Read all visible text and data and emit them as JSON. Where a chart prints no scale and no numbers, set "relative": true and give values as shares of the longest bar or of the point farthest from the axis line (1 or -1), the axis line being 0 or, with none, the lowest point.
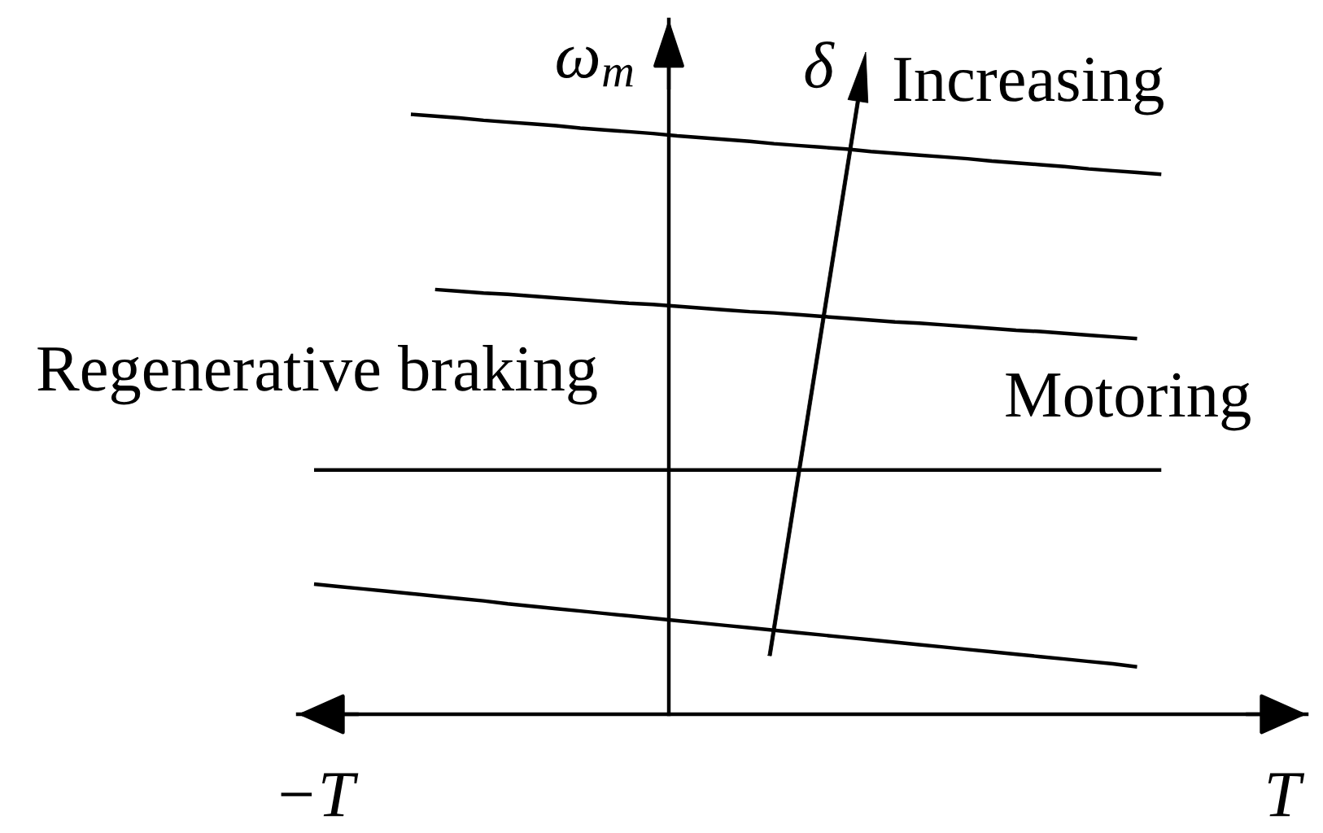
{
  "chart_data": {
    "type": "line",
    "relative": true,
    "ylabel": "ω$_{m}$",
    "categories": [
      null,
      null,
      null,
      null,
      null,
      null,
      null,
      null,
      null,
      null,
      null,
      null,
      null,
      null,
      null,
      null,
      null,
      null,
      null,
      null,
      null,
      null,
      null,
      null,
      null,
      null,
      null,
      null,
      null,
      null,
      null,
      null,
      null,
      null,
      null,
      null,
      null,
      null,
      null,
      null,
      null
    ],
    "annotations": [
      "δ",
      "Increasing",
      "Regenerative braking",
      "Motoring",
      "−T",
      "T"
    ],
    "series": [
      {
        "color": "#000000",
        "values": [
          null,
          null,
          null,
          null,
          1,
          0.997,
          0.994,
          0.99,
          0.987,
          0.984,
          0.981,
          0.977,
          0.974,
          0.971,
          0.968,
          0.964,
          0.961,
          0.958,
          0.955,
          0.951,
          0.948,
          0.945,
          0.942,
          0.938,
          0.935,
          0.932,
          0.929,
          0.926,
          0.922,
          0.919,
          0.916,
          0.913,
          0.909,
          0.906,
          0.903,
          0.9,
          null,
          null,
          null,
          null,
          null
        ]
      },
      {
        "color": "#000000",
        "values": [
          null,
          null,
          null,
          null,
          null,
          0.708,
          0.705,
          0.702,
          0.7,
          0.697,
          0.694,
          0.691,
          0.688,
          0.685,
          0.683,
          0.68,
          0.677,
          0.674,
          0.671,
          0.669,
          0.666,
          0.663,
          0.66,
          0.657,
          0.654,
          0.652,
          0.649,
          0.646,
          0.643,
          0.64,
          0.638,
          0.635,
          0.632,
          0.629,
          0.626,
          null,
          null,
          null,
          null,
          null,
          null
        ]
      },
      {
        "color": "#000000",
        "values": [
          0.407,
          0.407,
          0.407,
          0.407,
          0.407,
          0.407,
          0.407,
          0.407,
          0.407,
          0.407,
          0.407,
          0.407,
          0.407,
          0.407,
          0.407,
          0.407,
          0.407,
          0.407,
          0.407,
          0.407,
          0.407,
          0.407,
          0.407,
          0.407,
          0.407,
          0.407,
          0.407,
          0.407,
          0.407,
          0.407,
          0.407,
          0.407,
          0.407,
          0.407,
          0.407,
          0.407,
          null,
          null,
          null,
          null,
          null
        ]
      },
      {
        "color": "#000000",
        "values": [
          0.217,
          0.213,
          0.209,
          0.205,
          0.201,
          0.197,
          0.193,
          0.189,
          0.184,
          0.18,
          0.176,
          0.172,
          0.168,
          0.164,
          0.16,
          0.156,
          0.152,
          0.148,
          0.144,
          0.14,
          0.136,
          0.132,
          0.128,
          0.124,
          0.12,
          0.116,
          0.112,
          0.108,
          0.104,
          0.1,
          0.096,
          0.092,
          0.088,
          0.084,
          0.079,
          null,
          null,
          null,
          null,
          null,
          null
        ]
      }
    ]
  }
}
